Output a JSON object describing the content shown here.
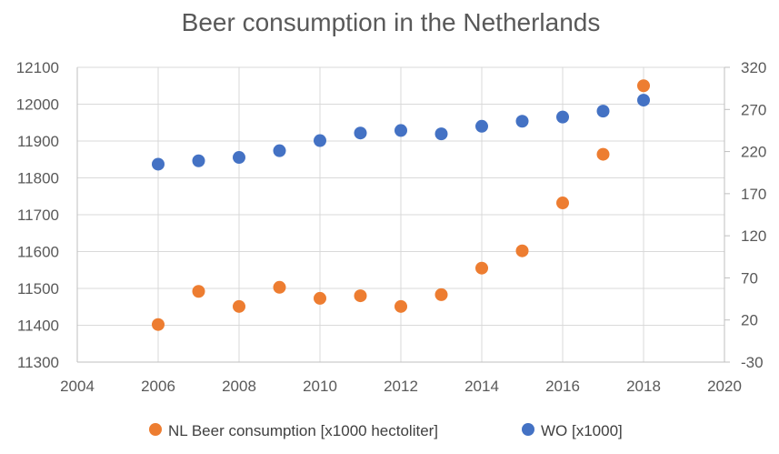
{
  "chart_data": {
    "type": "scatter",
    "title": "Beer consumption in the Netherlands",
    "x_axis": {
      "min": 2004,
      "max": 2020,
      "step": 2,
      "ticks": [
        "2004",
        "2006",
        "2008",
        "2010",
        "2012",
        "2014",
        "2016",
        "2018",
        "2020"
      ]
    },
    "y_left": {
      "min": 11300,
      "max": 12100,
      "step": 100,
      "ticks": [
        "11300",
        "11400",
        "11500",
        "11600",
        "11700",
        "11800",
        "11900",
        "12000",
        "12100"
      ]
    },
    "y_right": {
      "min": -30,
      "max": 320,
      "step": 50,
      "ticks": [
        "-30",
        "20",
        "70",
        "120",
        "170",
        "220",
        "270",
        "320"
      ]
    },
    "grid": true,
    "legend_position": "bottom",
    "series": [
      {
        "name": "NL Beer consumption [x1000 hectoliter]",
        "axis": "left",
        "color": "#ED7D31",
        "x": [
          2006,
          2007,
          2008,
          2009,
          2010,
          2011,
          2012,
          2013,
          2014,
          2015,
          2016,
          2017,
          2018
        ],
        "y": [
          11402,
          11492,
          11451,
          11503,
          11473,
          11480,
          11451,
          11483,
          11555,
          11602,
          11732,
          11864,
          12050
        ]
      },
      {
        "name": "WO [x1000]",
        "axis": "right",
        "color": "#4472C4",
        "x": [
          2006,
          2007,
          2008,
          2009,
          2010,
          2011,
          2012,
          2013,
          2014,
          2015,
          2016,
          2017,
          2018
        ],
        "y": [
          205,
          209,
          213,
          221,
          233,
          242,
          245,
          241,
          250,
          256,
          261,
          268,
          281
        ]
      }
    ]
  }
}
